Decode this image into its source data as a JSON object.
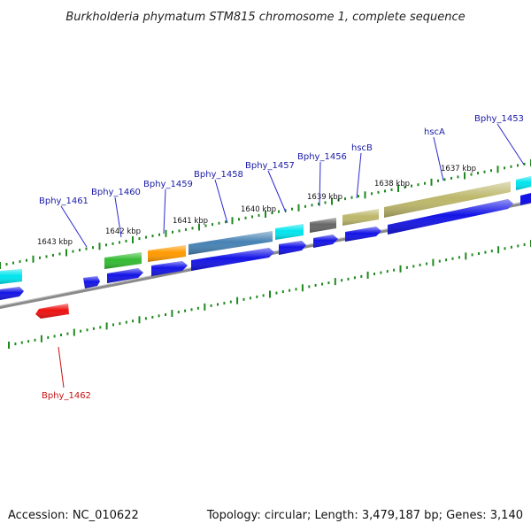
{
  "title": "Burkholderia phymatum STM815 chromosome 1, complete sequence",
  "accession": "Accession: NC_010622",
  "summary": "Topology: circular; Length: 3,479,187 bp; Genes: 3,140",
  "colors": {
    "label_blue": "#1a1aa6",
    "label_red": "#c81414",
    "leader_blue": "#2a2ad0",
    "leader_red": "#c81414",
    "tick_green": "#1e8a1e",
    "backbone_gray": "#8a8a8a",
    "cds_blue": "#1414e6",
    "cds_red": "#ee1111"
  },
  "ticks": [
    {
      "label": "1643 kbp"
    },
    {
      "label": "1642 kbp"
    },
    {
      "label": "1641 kbp"
    },
    {
      "label": "1640 kbp"
    },
    {
      "label": "1639 kbp"
    },
    {
      "label": "1638 kbp"
    },
    {
      "label": "1637 kbp"
    }
  ],
  "genes": [
    {
      "name": "Bphy_1462",
      "color": "#ee1111",
      "label_color": "red"
    },
    {
      "name": "Bphy_1461",
      "color": "#1414e6",
      "label_color": "blue"
    },
    {
      "name": "Bphy_1460",
      "color": "#33bb33",
      "label_color": "blue"
    },
    {
      "name": "Bphy_1459",
      "color": "#ff9900",
      "label_color": "blue"
    },
    {
      "name": "Bphy_1458",
      "color": "#4682b4",
      "label_color": "blue"
    },
    {
      "name": "Bphy_1457",
      "color": "#00e5ee",
      "label_color": "blue"
    },
    {
      "name": "Bphy_1456",
      "color": "#666666",
      "label_color": "blue"
    },
    {
      "name": "hscB",
      "color": "#bdb76b",
      "label_color": "blue"
    },
    {
      "name": "hscA",
      "color": "#bdb76b",
      "label_color": "blue"
    },
    {
      "name": "Bphy_1453",
      "color": "#00e5ee",
      "label_color": "blue"
    }
  ]
}
